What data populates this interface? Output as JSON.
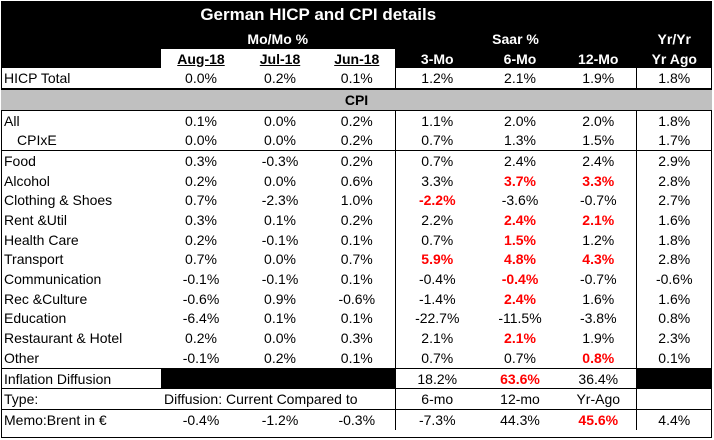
{
  "title": "German HICP and CPI details",
  "groups": {
    "momo": "Mo/Mo %",
    "saar": "Saar %",
    "yryr": "Yr/Yr"
  },
  "columns": [
    "Aug-18",
    "Jul-18",
    "Jun-18",
    "3-Mo",
    "6-Mo",
    "12-Mo",
    "Yr Ago"
  ],
  "hicp": {
    "label": "HICP Total",
    "values": [
      "0.0%",
      "0.2%",
      "0.1%",
      "1.2%",
      "2.1%",
      "1.9%",
      "1.8%"
    ]
  },
  "cpi_header": "CPI",
  "rows": [
    {
      "label": "All",
      "values": [
        "0.1%",
        "0.0%",
        "0.2%",
        "1.1%",
        "2.0%",
        "2.0%",
        "1.8%"
      ],
      "red": []
    },
    {
      "label": "CPIxE",
      "values": [
        "0.0%",
        "0.0%",
        "0.2%",
        "0.7%",
        "1.3%",
        "1.5%",
        "1.7%"
      ],
      "red": [],
      "indent": true
    },
    {
      "label": "Food",
      "values": [
        "0.3%",
        "-0.3%",
        "0.2%",
        "0.7%",
        "2.4%",
        "2.4%",
        "2.9%"
      ],
      "red": []
    },
    {
      "label": "Alcohol",
      "values": [
        "0.2%",
        "0.0%",
        "0.6%",
        "3.3%",
        "3.7%",
        "3.3%",
        "2.8%"
      ],
      "red": [
        4,
        5
      ]
    },
    {
      "label": "Clothing & Shoes",
      "values": [
        "0.7%",
        "-2.3%",
        "1.0%",
        "-2.2%",
        "-3.6%",
        "-0.7%",
        "2.7%"
      ],
      "red": [
        3
      ]
    },
    {
      "label": "Rent &Util",
      "values": [
        "0.3%",
        "0.1%",
        "0.2%",
        "2.2%",
        "2.4%",
        "2.1%",
        "1.6%"
      ],
      "red": [
        4,
        5
      ]
    },
    {
      "label": "Health Care",
      "values": [
        "0.2%",
        "-0.1%",
        "0.1%",
        "0.7%",
        "1.5%",
        "1.2%",
        "1.8%"
      ],
      "red": [
        4
      ]
    },
    {
      "label": "Transport",
      "values": [
        "0.7%",
        "0.0%",
        "0.7%",
        "5.9%",
        "4.8%",
        "4.3%",
        "2.8%"
      ],
      "red": [
        3,
        4,
        5
      ]
    },
    {
      "label": "Communication",
      "values": [
        "-0.1%",
        "-0.1%",
        "0.1%",
        "-0.4%",
        "-0.4%",
        "-0.7%",
        "-0.6%"
      ],
      "red": [
        4
      ]
    },
    {
      "label": "Rec &Culture",
      "values": [
        "-0.6%",
        "0.9%",
        "-0.6%",
        "-1.4%",
        "2.4%",
        "1.6%",
        "1.6%"
      ],
      "red": [
        4
      ]
    },
    {
      "label": "Education",
      "values": [
        "-6.4%",
        "0.1%",
        "0.1%",
        "-22.7%",
        "-11.5%",
        "-3.8%",
        "0.8%"
      ],
      "red": []
    },
    {
      "label": "Restaurant & Hotel",
      "values": [
        "0.2%",
        "0.0%",
        "0.3%",
        "2.1%",
        "2.1%",
        "1.9%",
        "2.3%"
      ],
      "red": [
        4
      ]
    },
    {
      "label": "Other",
      "values": [
        "-0.1%",
        "0.2%",
        "0.1%",
        "0.7%",
        "0.7%",
        "0.8%",
        "0.1%"
      ],
      "red": [
        5
      ]
    }
  ],
  "diffusion": {
    "label": "Inflation Diffusion",
    "values": [
      "18.2%",
      "63.6%",
      "36.4%"
    ],
    "red": [
      1
    ]
  },
  "type_row": {
    "label": "Type:",
    "desc": "Diffusion: Current Compared to",
    "values": [
      "6-mo",
      "12-mo",
      "Yr-Ago"
    ]
  },
  "memo": {
    "label": "Memo:Brent in €",
    "values": [
      "-0.4%",
      "-1.2%",
      "-0.3%",
      "-7.3%",
      "44.3%",
      "45.6%",
      "4.4%"
    ],
    "red": [
      5
    ]
  }
}
